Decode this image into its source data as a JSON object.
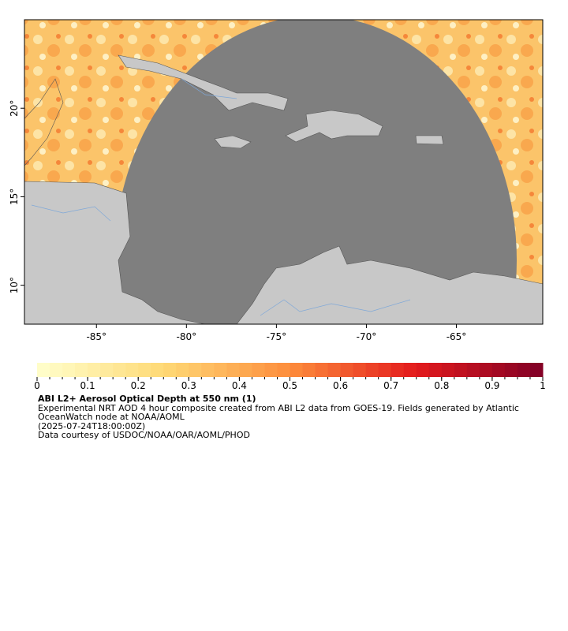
{
  "map": {
    "xlim": [
      -89,
      -60.2
    ],
    "ylim": [
      7.8,
      25
    ],
    "lon_ticks": [
      {
        "value": -85,
        "label": "-85°"
      },
      {
        "value": -80,
        "label": "-80°"
      },
      {
        "value": -75,
        "label": "-75°"
      },
      {
        "value": -70,
        "label": "-70°"
      },
      {
        "value": -65,
        "label": "-65°"
      }
    ],
    "lat_ticks": [
      {
        "value": 20,
        "label": "20°"
      },
      {
        "value": 15,
        "label": "15°"
      },
      {
        "value": 10,
        "label": "10°"
      }
    ]
  },
  "legend": {
    "scale_range": [
      0,
      1
    ],
    "ticks": [
      0,
      0.1,
      0.2,
      0.3,
      0.4,
      0.5,
      0.6,
      0.7,
      0.8,
      0.9,
      1
    ],
    "title": "ABI L2+ Aerosol Optical Depth at 550 nm (1)",
    "description": "Experimental NRT AOD 4 hour composite created from ABI L2 data from GOES-19. Fields generated by Atlantic OceanWatch node at NOAA/AOML",
    "timestamp": "(2025-07-24T18:00:00Z)",
    "credit": "Data courtesy of USDOC/NOAA/OAR/AOML/PHOD"
  }
}
